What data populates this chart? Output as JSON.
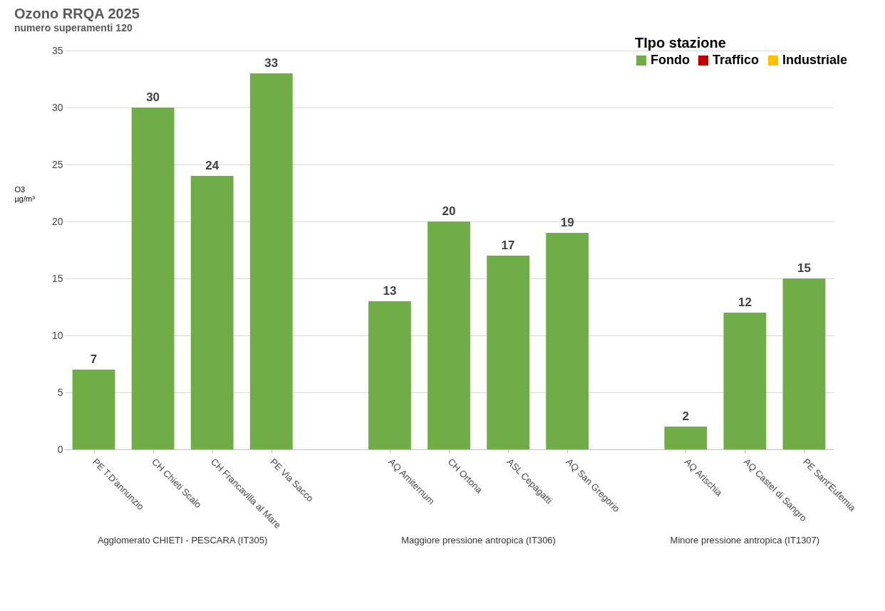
{
  "chart_data": {
    "type": "bar",
    "title": "Ozono RRQA  2025",
    "subtitle": "numero superamenti 120",
    "ylabel": "O3 µg/m³",
    "categories": [
      "PE T.D'annunzio",
      "CH Chieti Scalo",
      "CH Francavilla al Mare",
      "PE Via Sacco",
      null,
      "AQ Amiternum",
      "CH Ortona",
      "ASL Cepagatti",
      "AQ San Gregorio",
      null,
      "AQ Arischia",
      "AQ Castel di Sangro",
      "PE Sant'Eufemia"
    ],
    "series": [
      {
        "name": "Fondo",
        "color": "#70ad47",
        "values": [
          7,
          30,
          24,
          33,
          null,
          13,
          20,
          17,
          19,
          null,
          2,
          12,
          15
        ]
      },
      {
        "name": "Traffico",
        "color": "#c00000",
        "values": [
          null,
          null,
          null,
          null,
          null,
          null,
          null,
          null,
          null,
          null,
          null,
          null,
          null
        ]
      },
      {
        "name": "Industriale",
        "color": "#ffc000",
        "values": [
          null,
          null,
          null,
          null,
          null,
          null,
          null,
          null,
          null,
          null,
          null,
          null,
          null
        ]
      }
    ],
    "legend_title": "TIpo stazione",
    "legend": "top right",
    "ylim": [
      0,
      35
    ],
    "yticks": [
      0,
      5,
      10,
      15,
      20,
      25,
      30,
      35
    ],
    "grid": "y",
    "data_labels": true,
    "annotations": [
      "Agglomerato CHIETI - PESCARA (IT305)",
      "Maggiore pressione antropica (IT306)",
      "Minore pressione antropica (IT1307)"
    ]
  }
}
